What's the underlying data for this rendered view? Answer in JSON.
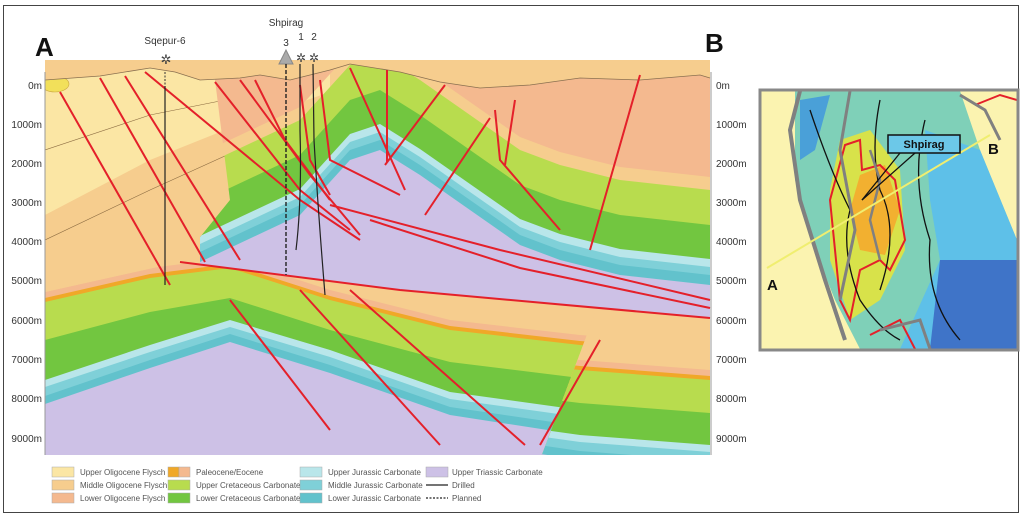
{
  "section": {
    "label_left": "A",
    "label_right": "B",
    "depth_ticks": [
      "0m",
      "1000m",
      "2000m",
      "3000m",
      "4000m",
      "5000m",
      "6000m",
      "7000m",
      "8000m",
      "9000m"
    ],
    "wells": {
      "sqepur": "Sqepur-6",
      "field": "Shpirag",
      "w3": "3",
      "w1": "1",
      "w2": "2"
    }
  },
  "legend": {
    "items": [
      {
        "label": "Upper Oligocene Flysch",
        "color": "#fbe6a4"
      },
      {
        "label": "Middle Oligocene Flysch",
        "color": "#f6cd8e"
      },
      {
        "label": "Lower Oligocene Flysch",
        "color": "#f4b98f"
      },
      {
        "label": "Paleocene/Eocene",
        "color": "#f0a828"
      },
      {
        "label": "Upper Cretaceous Carbonate",
        "color": "#b8dc4e"
      },
      {
        "label": "Lower Cretaceous Carbonate",
        "color": "#72c640"
      },
      {
        "label": "Upper Jurassic Carbonate",
        "color": "#b9e6ea"
      },
      {
        "label": "Middle Jurassic Carbonate",
        "color": "#7fd0d8"
      },
      {
        "label": "Lower Jurassic Carbonate",
        "color": "#62c2cc"
      },
      {
        "label": "Upper Triassic Carbonate",
        "color": "#cdc1e6"
      }
    ],
    "drilled": "Drilled",
    "planned": "Planned"
  },
  "map": {
    "field_label": "Shpirag",
    "label_a": "A",
    "label_b": "B"
  },
  "colors": {
    "fault": "#e4202a",
    "section_line": "#f0ee70"
  }
}
